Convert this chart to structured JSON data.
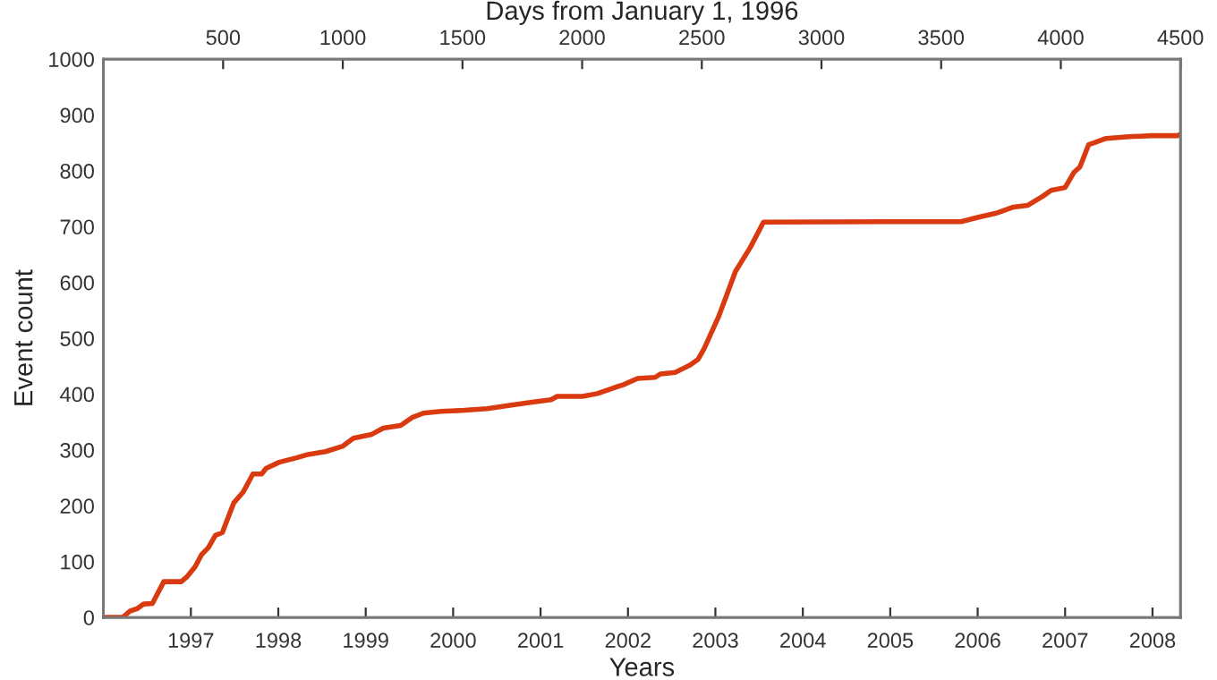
{
  "chart_data": {
    "type": "line",
    "xlabel": "Years",
    "x2label": "Days from January 1, 1996",
    "ylabel": "Event count",
    "x": [
      1996.0,
      1996.22,
      1996.3,
      1996.39,
      1996.46,
      1996.56,
      1996.69,
      1996.89,
      1996.95,
      1997.05,
      1997.12,
      1997.2,
      1997.28,
      1997.36,
      1997.49,
      1997.6,
      1997.71,
      1997.81,
      1997.86,
      1998.01,
      1998.21,
      1998.34,
      1998.54,
      1998.74,
      1998.86,
      1999.07,
      1999.2,
      1999.4,
      1999.53,
      1999.66,
      1999.86,
      2000.13,
      2000.39,
      2000.65,
      2000.92,
      2001.12,
      2001.19,
      2001.48,
      2001.65,
      2001.85,
      2001.95,
      2002.11,
      2002.31,
      2002.37,
      2002.54,
      2002.71,
      2002.8,
      2002.87,
      2003.04,
      2003.23,
      2003.4,
      2003.55,
      2004.95,
      2005.81,
      2006.01,
      2006.21,
      2006.41,
      2006.57,
      2006.74,
      2006.84,
      2007.0,
      2007.1,
      2007.17,
      2007.27,
      2007.33,
      2007.47,
      2007.73,
      2007.99,
      2008.29,
      2008.32
    ],
    "series": [
      {
        "color": "#d93a10",
        "values": [
          0,
          0,
          11,
          16,
          24,
          25,
          64,
          64,
          72,
          91,
          112,
          125,
          147,
          152,
          205,
          225,
          257,
          257,
          267,
          278,
          286,
          292,
          297,
          307,
          321,
          328,
          339,
          344,
          358,
          366,
          369,
          371,
          374,
          380,
          386,
          390,
          396,
          396,
          401,
          412,
          417,
          428,
          430,
          436,
          439,
          452,
          462,
          481,
          540,
          620,
          663,
          708,
          709,
          709,
          717,
          724,
          735,
          738,
          754,
          765,
          770,
          797,
          807,
          847,
          850,
          858,
          861,
          863,
          863,
          866
        ]
      }
    ],
    "xlim": [
      1996,
      2008.32
    ],
    "xticks": [
      1997,
      1998,
      1999,
      2000,
      2001,
      2002,
      2003,
      2004,
      2005,
      2006,
      2007,
      2008
    ],
    "x2lim": [
      0,
      4500
    ],
    "x2ticks": [
      500,
      1000,
      1500,
      2000,
      2500,
      3000,
      3500,
      4000,
      4500
    ],
    "ylim": [
      0,
      1000
    ],
    "yticks": [
      0,
      100,
      200,
      300,
      400,
      500,
      600,
      700,
      800,
      900,
      1000
    ],
    "marker": "none",
    "line_style": "solid"
  }
}
